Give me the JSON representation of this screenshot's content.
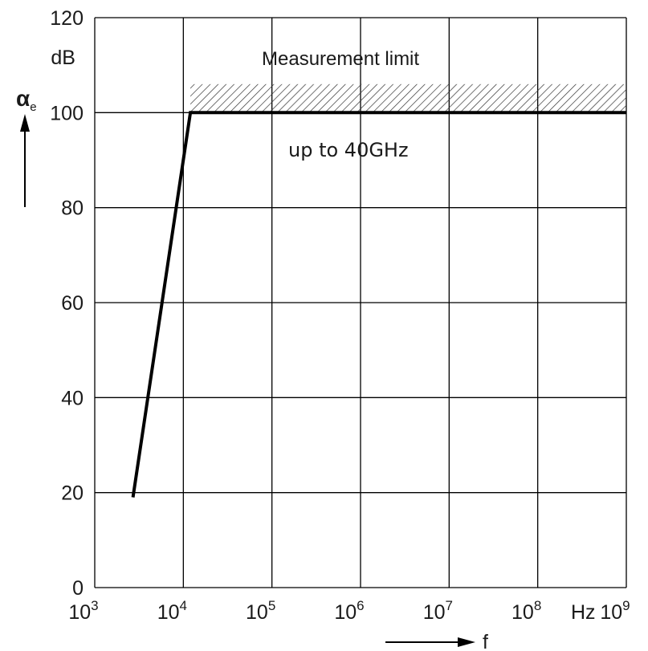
{
  "chart_data": {
    "type": "line",
    "title": "",
    "x_scale": "log",
    "xlim": [
      1000,
      1000000000
    ],
    "ylim": [
      0,
      120
    ],
    "x_ticks": [
      {
        "base": "10",
        "exp": "3"
      },
      {
        "base": "10",
        "exp": "4"
      },
      {
        "base": "10",
        "exp": "5"
      },
      {
        "base": "10",
        "exp": "6"
      },
      {
        "base": "10",
        "exp": "7"
      },
      {
        "base": "10",
        "exp": "8"
      },
      {
        "base": "10",
        "exp": "9"
      }
    ],
    "y_ticks": [
      "0",
      "20",
      "40",
      "60",
      "80",
      "100",
      "120"
    ],
    "xlabel": "f",
    "x_unit": "Hz",
    "ylabel": {
      "main": "α",
      "sub": "e"
    },
    "y_unit": "dB",
    "grid": true,
    "series": [
      {
        "points": [
          [
            2700,
            19
          ],
          [
            12000,
            100
          ],
          [
            1000000000,
            100
          ]
        ]
      }
    ],
    "annotations": {
      "measurement_limit": "Measurement limit",
      "frequency_note": "up to 40GHz"
    },
    "measurement_limit_band": {
      "x_from": 12000,
      "x_to": 1000000000,
      "y_from": 100,
      "y_to": 106
    }
  }
}
